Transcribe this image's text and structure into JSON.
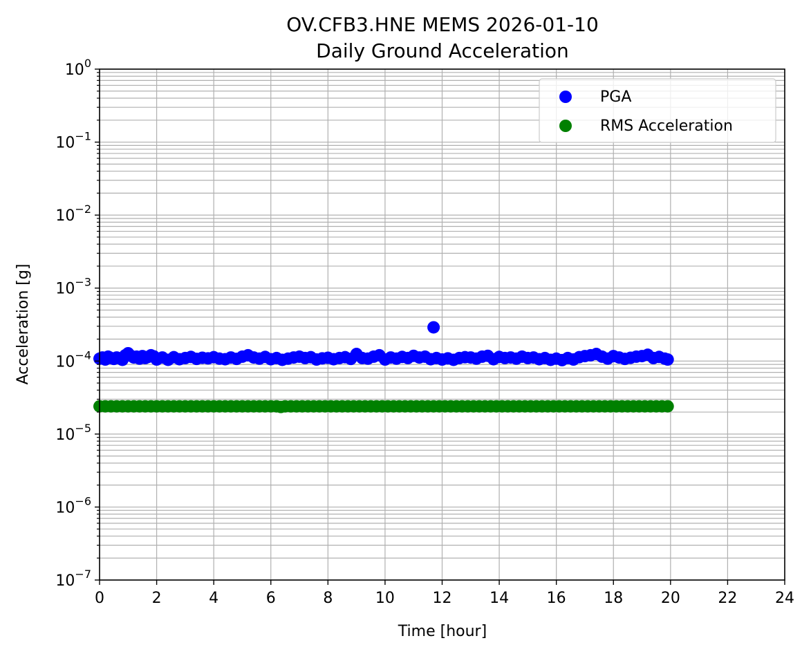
{
  "chart_data": {
    "type": "scatter",
    "title": "OV.CFB3.HNE MEMS 2026-01-10",
    "subtitle": "Daily Ground Acceleration",
    "xlabel": "Time [hour]",
    "ylabel": "Acceleration [g]",
    "xlim": [
      0,
      24
    ],
    "ylim": [
      1e-07,
      1
    ],
    "yscale": "log",
    "grid": true,
    "legend_position": "top-right",
    "x_ticks": [
      "0",
      "2",
      "4",
      "6",
      "8",
      "10",
      "12",
      "14",
      "16",
      "18",
      "20",
      "22",
      "24"
    ],
    "y_ticks": [
      {
        "base": "10",
        "exp": "−7",
        "value": 1e-07
      },
      {
        "base": "10",
        "exp": "−6",
        "value": 1e-06
      },
      {
        "base": "10",
        "exp": "−5",
        "value": 1e-05
      },
      {
        "base": "10",
        "exp": "−4",
        "value": 0.0001
      },
      {
        "base": "10",
        "exp": "−3",
        "value": 0.001
      },
      {
        "base": "10",
        "exp": "−2",
        "value": 0.01
      },
      {
        "base": "10",
        "exp": "−1",
        "value": 0.1
      },
      {
        "base": "10",
        "exp": "0",
        "value": 1
      }
    ],
    "series": [
      {
        "name": "PGA",
        "color": "#0000ff",
        "points": [
          [
            0.0,
            0.000108
          ],
          [
            0.1,
            0.000112
          ],
          [
            0.2,
            0.000105
          ],
          [
            0.3,
            0.000115
          ],
          [
            0.4,
            0.00011
          ],
          [
            0.5,
            0.000107
          ],
          [
            0.6,
            0.000112
          ],
          [
            0.7,
            0.000109
          ],
          [
            0.8,
            0.000104
          ],
          [
            0.9,
            0.00012
          ],
          [
            1.0,
            0.000128
          ],
          [
            1.1,
            0.000118
          ],
          [
            1.2,
            0.000112
          ],
          [
            1.3,
            0.000115
          ],
          [
            1.4,
            0.000108
          ],
          [
            1.5,
            0.000117
          ],
          [
            1.6,
            0.00011
          ],
          [
            1.7,
            0.000114
          ],
          [
            1.8,
            0.00012
          ],
          [
            1.9,
            0.000116
          ],
          [
            2.0,
            0.000105
          ],
          [
            2.2,
            0.000112
          ],
          [
            2.4,
            0.000104
          ],
          [
            2.6,
            0.000113
          ],
          [
            2.8,
            0.000106
          ],
          [
            3.0,
            0.00011
          ],
          [
            3.2,
            0.000114
          ],
          [
            3.4,
            0.000107
          ],
          [
            3.6,
            0.000111
          ],
          [
            3.8,
            0.000109
          ],
          [
            4.0,
            0.000113
          ],
          [
            4.2,
            0.000108
          ],
          [
            4.4,
            0.000106
          ],
          [
            4.6,
            0.000112
          ],
          [
            4.8,
            0.000107
          ],
          [
            5.0,
            0.000115
          ],
          [
            5.2,
            0.00012
          ],
          [
            5.4,
            0.000112
          ],
          [
            5.6,
            0.000108
          ],
          [
            5.8,
            0.000114
          ],
          [
            6.0,
            0.000106
          ],
          [
            6.2,
            0.00011
          ],
          [
            6.4,
            0.000104
          ],
          [
            6.6,
            0.000108
          ],
          [
            6.8,
            0.000112
          ],
          [
            7.0,
            0.000115
          ],
          [
            7.2,
            0.00011
          ],
          [
            7.4,
            0.000113
          ],
          [
            7.6,
            0.000105
          ],
          [
            7.8,
            0.000109
          ],
          [
            8.0,
            0.000111
          ],
          [
            8.2,
            0.000106
          ],
          [
            8.4,
            0.00011
          ],
          [
            8.6,
            0.000113
          ],
          [
            8.8,
            0.000107
          ],
          [
            9.0,
            0.000125
          ],
          [
            9.2,
            0.00011
          ],
          [
            9.4,
            0.000108
          ],
          [
            9.6,
            0.000115
          ],
          [
            9.8,
            0.00012
          ],
          [
            10.0,
            0.000105
          ],
          [
            10.2,
            0.000112
          ],
          [
            10.4,
            0.000108
          ],
          [
            10.6,
            0.000114
          ],
          [
            10.8,
            0.00011
          ],
          [
            11.0,
            0.000118
          ],
          [
            11.2,
            0.000112
          ],
          [
            11.4,
            0.000115
          ],
          [
            11.6,
            0.000106
          ],
          [
            11.7,
            0.00029
          ],
          [
            11.8,
            0.00011
          ],
          [
            12.0,
            0.000105
          ],
          [
            12.2,
            0.000109
          ],
          [
            12.4,
            0.000104
          ],
          [
            12.6,
            0.00011
          ],
          [
            12.8,
            0.000113
          ],
          [
            13.0,
            0.000112
          ],
          [
            13.2,
            0.000108
          ],
          [
            13.4,
            0.000115
          ],
          [
            13.6,
            0.000118
          ],
          [
            13.8,
            0.000106
          ],
          [
            14.0,
            0.000114
          ],
          [
            14.2,
            0.00011
          ],
          [
            14.4,
            0.000112
          ],
          [
            14.6,
            0.000108
          ],
          [
            14.8,
            0.000115
          ],
          [
            15.0,
            0.00011
          ],
          [
            15.2,
            0.000112
          ],
          [
            15.4,
            0.000106
          ],
          [
            15.6,
            0.00011
          ],
          [
            15.8,
            0.000104
          ],
          [
            16.0,
            0.000108
          ],
          [
            16.2,
            0.000103
          ],
          [
            16.4,
            0.00011
          ],
          [
            16.6,
            0.000105
          ],
          [
            16.8,
            0.000113
          ],
          [
            17.0,
            0.000117
          ],
          [
            17.2,
            0.00012
          ],
          [
            17.4,
            0.000125
          ],
          [
            17.6,
            0.000115
          ],
          [
            17.8,
            0.000108
          ],
          [
            18.0,
            0.000117
          ],
          [
            18.2,
            0.000112
          ],
          [
            18.4,
            0.000107
          ],
          [
            18.6,
            0.000111
          ],
          [
            18.8,
            0.000115
          ],
          [
            19.0,
            0.000117
          ],
          [
            19.2,
            0.000122
          ],
          [
            19.4,
            0.00011
          ],
          [
            19.6,
            0.000114
          ],
          [
            19.8,
            0.000108
          ],
          [
            19.9,
            0.000105
          ]
        ]
      },
      {
        "name": "RMS Acceleration",
        "color": "#008000",
        "points": [
          [
            0.0,
            2.4e-05
          ],
          [
            0.2,
            2.4e-05
          ],
          [
            0.4,
            2.4e-05
          ],
          [
            0.6,
            2.4e-05
          ],
          [
            0.8,
            2.4e-05
          ],
          [
            1.0,
            2.4e-05
          ],
          [
            1.2,
            2.4e-05
          ],
          [
            1.4,
            2.4e-05
          ],
          [
            1.6,
            2.4e-05
          ],
          [
            1.8,
            2.4e-05
          ],
          [
            2.0,
            2.4e-05
          ],
          [
            2.2,
            2.4e-05
          ],
          [
            2.4,
            2.4e-05
          ],
          [
            2.6,
            2.4e-05
          ],
          [
            2.8,
            2.4e-05
          ],
          [
            3.0,
            2.4e-05
          ],
          [
            3.2,
            2.4e-05
          ],
          [
            3.4,
            2.4e-05
          ],
          [
            3.6,
            2.4e-05
          ],
          [
            3.8,
            2.4e-05
          ],
          [
            4.0,
            2.4e-05
          ],
          [
            4.2,
            2.4e-05
          ],
          [
            4.4,
            2.4e-05
          ],
          [
            4.6,
            2.4e-05
          ],
          [
            4.8,
            2.4e-05
          ],
          [
            5.0,
            2.4e-05
          ],
          [
            5.2,
            2.4e-05
          ],
          [
            5.4,
            2.4e-05
          ],
          [
            5.6,
            2.4e-05
          ],
          [
            5.8,
            2.4e-05
          ],
          [
            6.0,
            2.4e-05
          ],
          [
            6.2,
            2.4e-05
          ],
          [
            6.35,
            2.35e-05
          ],
          [
            6.5,
            2.4e-05
          ],
          [
            6.7,
            2.4e-05
          ],
          [
            6.9,
            2.4e-05
          ],
          [
            7.1,
            2.4e-05
          ],
          [
            7.3,
            2.4e-05
          ],
          [
            7.5,
            2.4e-05
          ],
          [
            7.7,
            2.4e-05
          ],
          [
            7.9,
            2.4e-05
          ],
          [
            8.1,
            2.4e-05
          ],
          [
            8.3,
            2.4e-05
          ],
          [
            8.5,
            2.4e-05
          ],
          [
            8.7,
            2.4e-05
          ],
          [
            8.9,
            2.4e-05
          ],
          [
            9.1,
            2.4e-05
          ],
          [
            9.3,
            2.4e-05
          ],
          [
            9.5,
            2.4e-05
          ],
          [
            9.7,
            2.4e-05
          ],
          [
            9.9,
            2.4e-05
          ],
          [
            10.1,
            2.4e-05
          ],
          [
            10.3,
            2.4e-05
          ],
          [
            10.5,
            2.4e-05
          ],
          [
            10.7,
            2.4e-05
          ],
          [
            10.9,
            2.4e-05
          ],
          [
            11.1,
            2.4e-05
          ],
          [
            11.3,
            2.4e-05
          ],
          [
            11.5,
            2.4e-05
          ],
          [
            11.7,
            2.4e-05
          ],
          [
            11.9,
            2.4e-05
          ],
          [
            12.1,
            2.4e-05
          ],
          [
            12.3,
            2.4e-05
          ],
          [
            12.5,
            2.4e-05
          ],
          [
            12.7,
            2.4e-05
          ],
          [
            12.9,
            2.4e-05
          ],
          [
            13.1,
            2.4e-05
          ],
          [
            13.3,
            2.4e-05
          ],
          [
            13.5,
            2.4e-05
          ],
          [
            13.7,
            2.4e-05
          ],
          [
            13.9,
            2.4e-05
          ],
          [
            14.1,
            2.4e-05
          ],
          [
            14.3,
            2.4e-05
          ],
          [
            14.5,
            2.4e-05
          ],
          [
            14.7,
            2.4e-05
          ],
          [
            14.9,
            2.4e-05
          ],
          [
            15.1,
            2.4e-05
          ],
          [
            15.3,
            2.4e-05
          ],
          [
            15.5,
            2.4e-05
          ],
          [
            15.7,
            2.4e-05
          ],
          [
            15.9,
            2.4e-05
          ],
          [
            16.1,
            2.4e-05
          ],
          [
            16.3,
            2.4e-05
          ],
          [
            16.5,
            2.4e-05
          ],
          [
            16.7,
            2.4e-05
          ],
          [
            16.9,
            2.4e-05
          ],
          [
            17.1,
            2.4e-05
          ],
          [
            17.3,
            2.4e-05
          ],
          [
            17.5,
            2.4e-05
          ],
          [
            17.7,
            2.4e-05
          ],
          [
            17.9,
            2.4e-05
          ],
          [
            18.1,
            2.4e-05
          ],
          [
            18.3,
            2.4e-05
          ],
          [
            18.5,
            2.4e-05
          ],
          [
            18.7,
            2.4e-05
          ],
          [
            18.9,
            2.4e-05
          ],
          [
            19.1,
            2.4e-05
          ],
          [
            19.3,
            2.4e-05
          ],
          [
            19.5,
            2.4e-05
          ],
          [
            19.7,
            2.4e-05
          ],
          [
            19.9,
            2.4e-05
          ]
        ]
      }
    ]
  }
}
